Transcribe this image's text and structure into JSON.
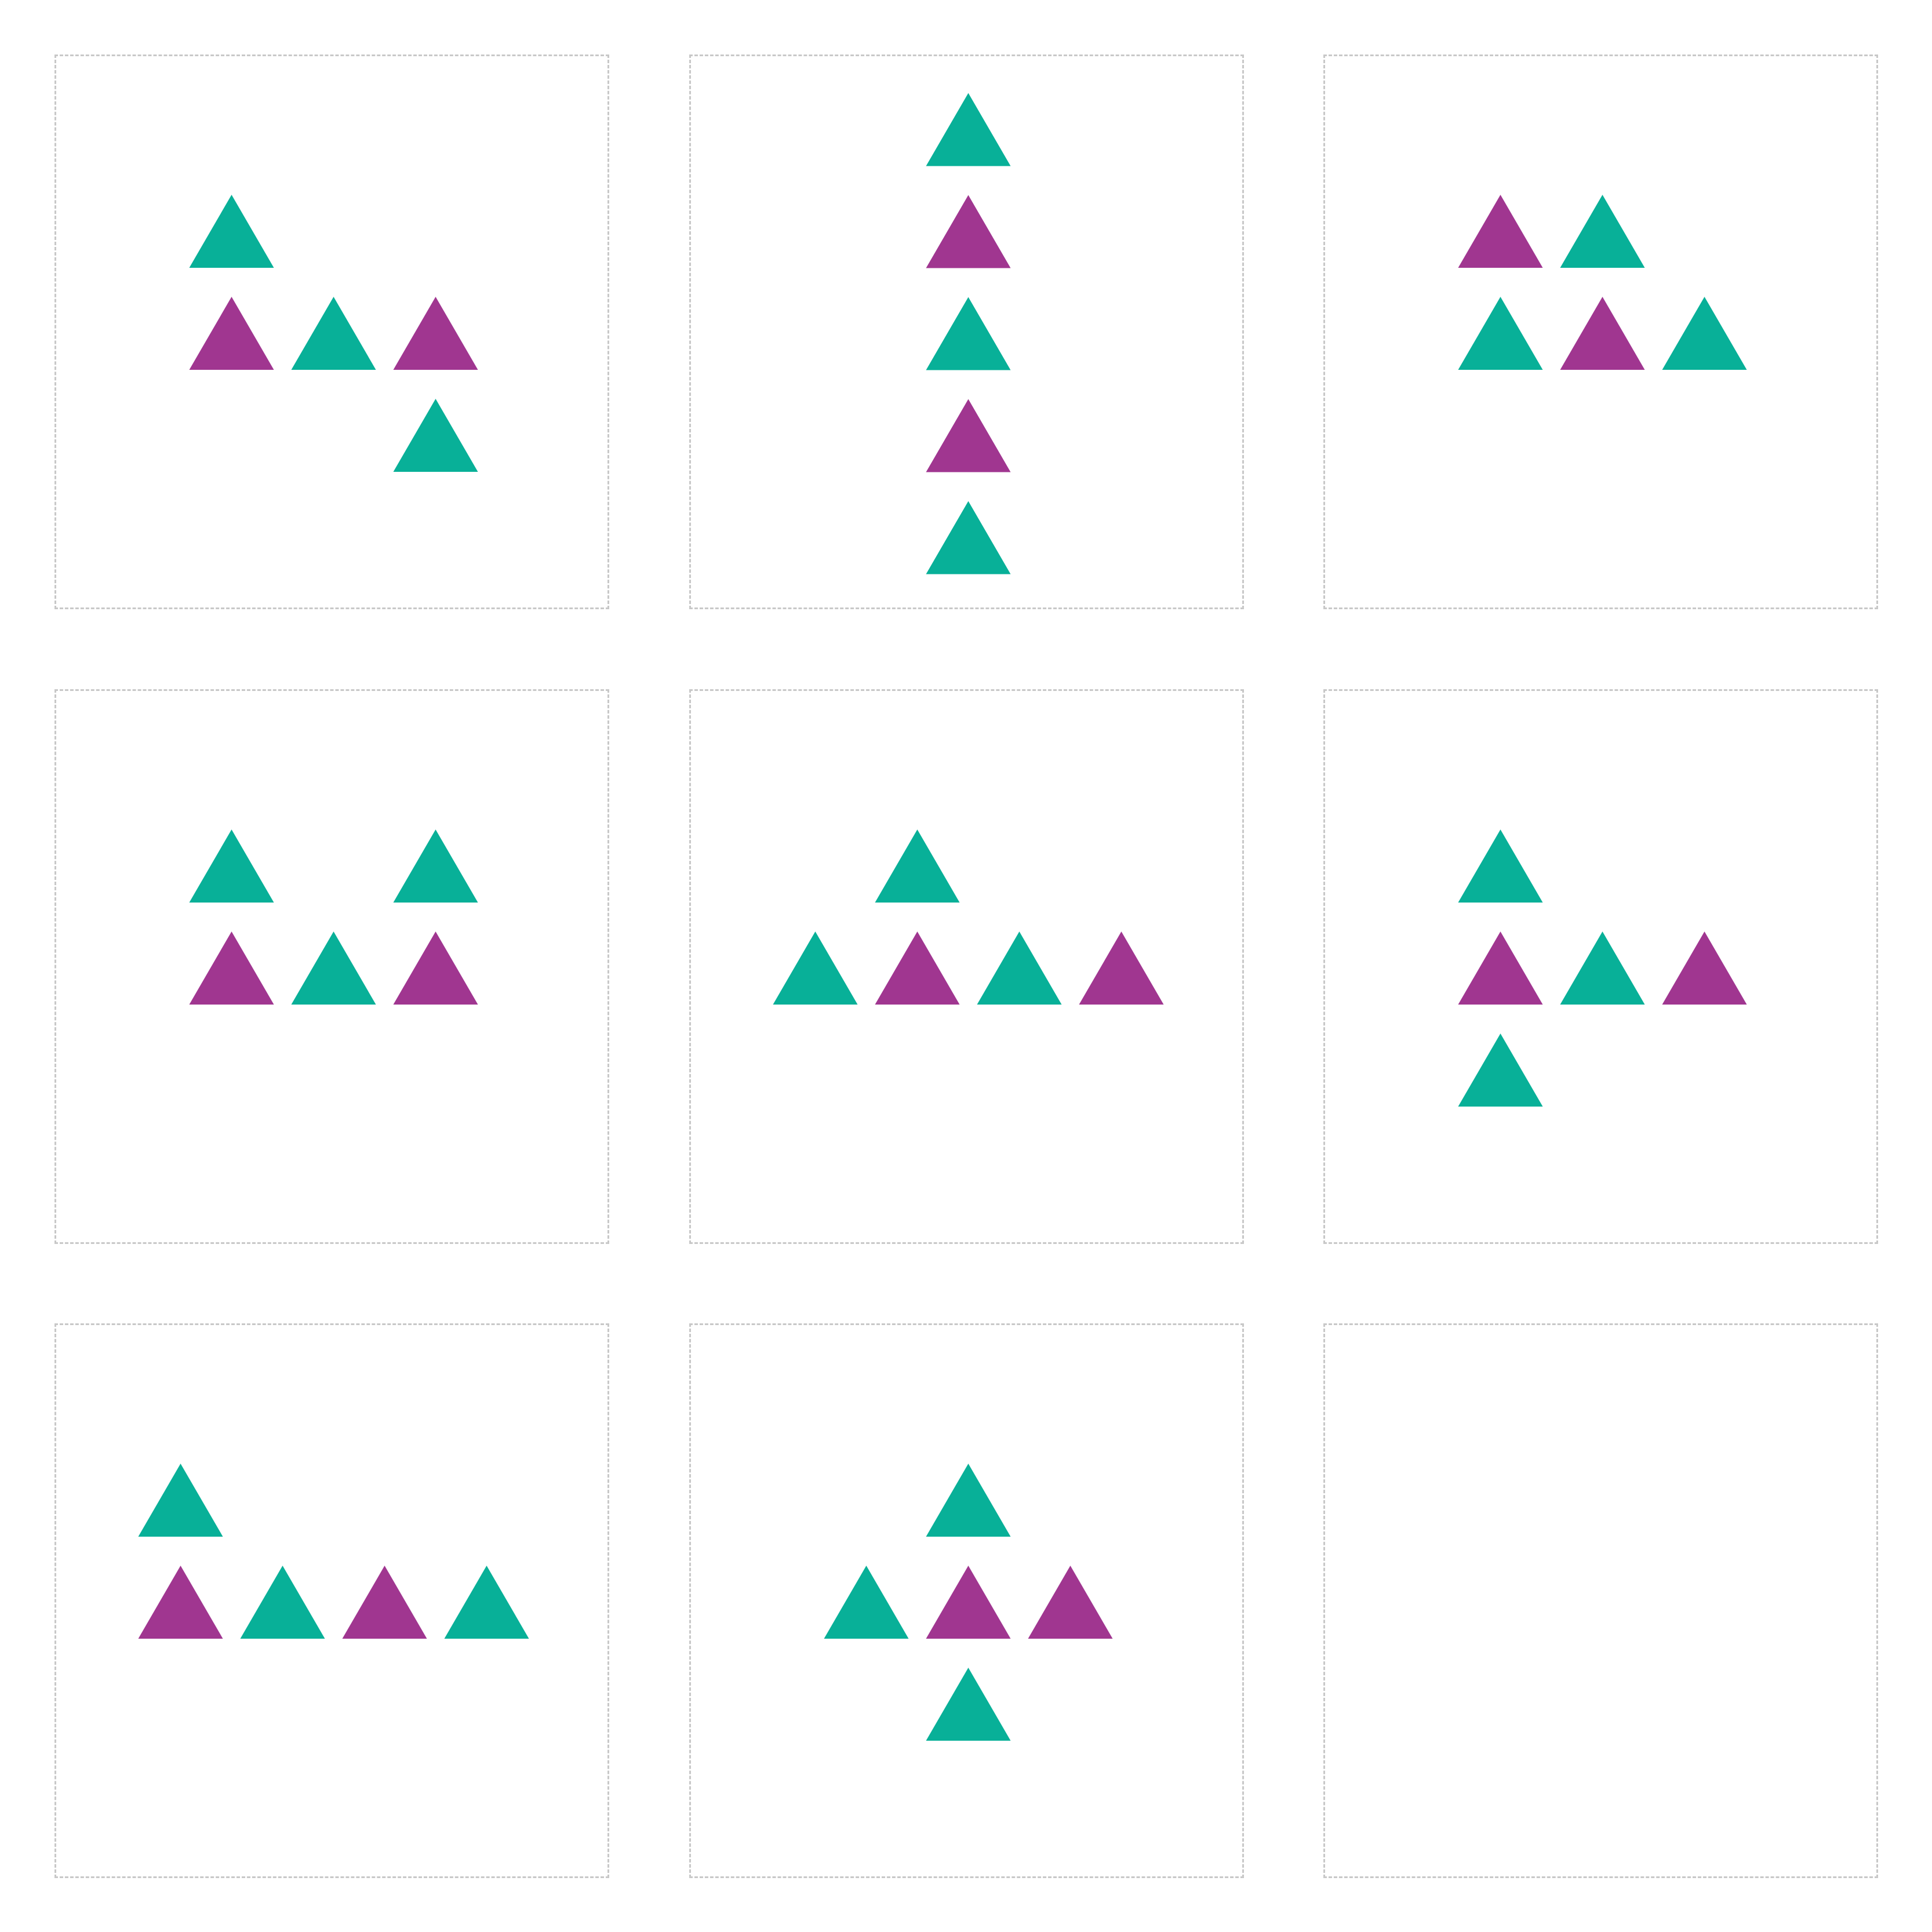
{
  "colors": {
    "background": "#ffffff",
    "panel_border": "#c8c8c8",
    "teal": "#08b098",
    "purple": "#a03690"
  },
  "puzzle": {
    "description_shapes": "triangle",
    "panels": [
      {
        "id": "panel-1",
        "answer_slot": false,
        "triangles": [
          {
            "row": 0,
            "col": 0,
            "color": "teal"
          },
          {
            "row": 1,
            "col": 0,
            "color": "purple"
          },
          {
            "row": 1,
            "col": 1,
            "color": "teal"
          },
          {
            "row": 1,
            "col": 2,
            "color": "purple"
          },
          {
            "row": 2,
            "col": 2,
            "color": "teal"
          }
        ]
      },
      {
        "id": "panel-2",
        "answer_slot": false,
        "triangles": [
          {
            "row": 0,
            "col": 0,
            "color": "teal"
          },
          {
            "row": 1,
            "col": 0,
            "color": "purple"
          },
          {
            "row": 2,
            "col": 0,
            "color": "teal"
          },
          {
            "row": 3,
            "col": 0,
            "color": "purple"
          },
          {
            "row": 4,
            "col": 0,
            "color": "teal"
          }
        ]
      },
      {
        "id": "panel-3",
        "answer_slot": false,
        "triangles": [
          {
            "row": 0,
            "col": 0,
            "color": "purple"
          },
          {
            "row": 0,
            "col": 1,
            "color": "teal"
          },
          {
            "row": 1,
            "col": 0,
            "color": "teal"
          },
          {
            "row": 1,
            "col": 1,
            "color": "purple"
          },
          {
            "row": 1,
            "col": 2,
            "color": "teal"
          }
        ]
      },
      {
        "id": "panel-4",
        "answer_slot": false,
        "triangles": [
          {
            "row": 0,
            "col": 0,
            "color": "teal"
          },
          {
            "row": 0,
            "col": 2,
            "color": "teal"
          },
          {
            "row": 1,
            "col": 0,
            "color": "purple"
          },
          {
            "row": 1,
            "col": 1,
            "color": "teal"
          },
          {
            "row": 1,
            "col": 2,
            "color": "purple"
          }
        ]
      },
      {
        "id": "panel-5",
        "answer_slot": false,
        "triangles": [
          {
            "row": 0,
            "col": 1,
            "color": "teal"
          },
          {
            "row": 1,
            "col": 0,
            "color": "teal"
          },
          {
            "row": 1,
            "col": 1,
            "color": "purple"
          },
          {
            "row": 1,
            "col": 2,
            "color": "teal"
          },
          {
            "row": 1,
            "col": 3,
            "color": "purple"
          }
        ]
      },
      {
        "id": "panel-6",
        "answer_slot": false,
        "triangles": [
          {
            "row": 0,
            "col": 0,
            "color": "teal"
          },
          {
            "row": 1,
            "col": 0,
            "color": "purple"
          },
          {
            "row": 1,
            "col": 1,
            "color": "teal"
          },
          {
            "row": 1,
            "col": 2,
            "color": "purple"
          },
          {
            "row": 2,
            "col": 0,
            "color": "teal"
          }
        ]
      },
      {
        "id": "panel-7",
        "answer_slot": false,
        "triangles": [
          {
            "row": 0,
            "col": 0,
            "color": "teal"
          },
          {
            "row": 1,
            "col": 0,
            "color": "purple"
          },
          {
            "row": 1,
            "col": 1,
            "color": "teal"
          },
          {
            "row": 1,
            "col": 2,
            "color": "purple"
          },
          {
            "row": 1,
            "col": 3,
            "color": "teal"
          }
        ]
      },
      {
        "id": "panel-8",
        "answer_slot": false,
        "triangles": [
          {
            "row": 0,
            "col": 1,
            "color": "teal"
          },
          {
            "row": 1,
            "col": 0,
            "color": "teal"
          },
          {
            "row": 1,
            "col": 1,
            "color": "purple"
          },
          {
            "row": 1,
            "col": 2,
            "color": "purple"
          },
          {
            "row": 2,
            "col": 1,
            "color": "teal"
          }
        ]
      },
      {
        "id": "panel-9",
        "answer_slot": true,
        "triangles": []
      }
    ]
  }
}
